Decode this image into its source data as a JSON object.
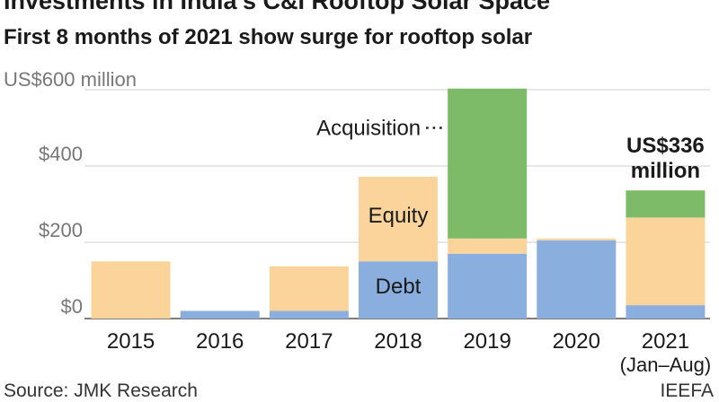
{
  "title": "Investments in India's C&I Rooftop Solar Space",
  "subtitle": "First 8 months of 2021 show surge for rooftop solar",
  "chart_data": {
    "type": "bar",
    "stacked": true,
    "ylim": [
      0,
      600
    ],
    "grid": true,
    "categories": [
      "2015",
      "2016",
      "2017",
      "2018",
      "2019",
      "2020",
      "2021"
    ],
    "category_sublabels": [
      "",
      "",
      "",
      "",
      "",
      "",
      "(Jan–Aug)"
    ],
    "y_ticks": [
      {
        "value": 0,
        "label": "$0"
      },
      {
        "value": 200,
        "label": "$200"
      },
      {
        "value": 400,
        "label": "$400"
      },
      {
        "value": 600,
        "label": "US$600 million"
      }
    ],
    "series": [
      {
        "name": "Debt",
        "color": "#8aaedd",
        "values": [
          0,
          20,
          20,
          150,
          170,
          205,
          35
        ]
      },
      {
        "name": "Equity",
        "color": "#fbd49b",
        "values": [
          150,
          0,
          117,
          222,
          40,
          5,
          230
        ]
      },
      {
        "name": "Acquisition",
        "color": "#7dbb69",
        "values": [
          0,
          0,
          0,
          0,
          393,
          0,
          71
        ]
      }
    ],
    "annotations": {
      "acquisition_label": "Acquisition",
      "equity_label": "Equity",
      "debt_label": "Debt",
      "total_2021_line1": "US$336",
      "total_2021_line2": "million"
    }
  },
  "footer": {
    "source": "Source: JMK Research",
    "credit": "IEEFA"
  }
}
